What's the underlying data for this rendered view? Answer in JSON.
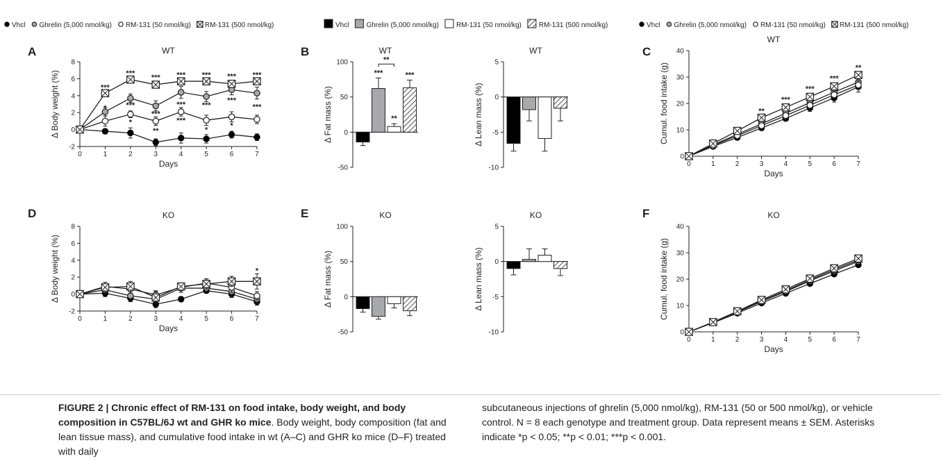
{
  "legends": {
    "line_entries": [
      {
        "marker": "filled-circle",
        "label": "Vhcl"
      },
      {
        "marker": "gray-circle",
        "label": "Ghrelin (5,000 nmol/kg)"
      },
      {
        "marker": "open-circle",
        "label": "RM-131 (50 nmol/kg)"
      },
      {
        "marker": "crossed-square",
        "label": "RM-131 (500 nmol/kg)"
      }
    ],
    "bar_entries": [
      {
        "fill": "black",
        "label": "Vhcl"
      },
      {
        "fill": "gray",
        "label": "Ghrelin (5,000 nmol/kg)"
      },
      {
        "fill": "white",
        "label": "RM-131 (50 nmol/kg)"
      },
      {
        "fill": "hatched",
        "label": "RM-131 (500 nmol/kg)"
      }
    ]
  },
  "colors": {
    "vhcl": "#000000",
    "ghrelin": "#a7a9ac",
    "rm50": "#ffffff",
    "rm500": "#ffffff",
    "ink": "#231f20"
  },
  "chart_data": [
    {
      "panel": "A",
      "type": "line",
      "title": "WT",
      "xlabel": "Days",
      "ylabel": "Δ Body weight (%)",
      "x": [
        0,
        1,
        2,
        3,
        4,
        5,
        6,
        7
      ],
      "xlim": [
        0,
        7
      ],
      "ylim": [
        -2,
        8
      ],
      "yticks": [
        -2,
        0,
        2,
        4,
        6,
        8
      ],
      "series": [
        {
          "name": "Vhcl",
          "marker": "filled-circle",
          "values": [
            0,
            -0.2,
            -0.4,
            -1.5,
            -1.0,
            -1.1,
            -0.6,
            -0.9
          ],
          "err": [
            0.2,
            0.3,
            0.6,
            0.4,
            0.6,
            0.5,
            0.4,
            0.4
          ]
        },
        {
          "name": "Ghrelin (5,000 nmol/kg)",
          "marker": "gray-circle",
          "values": [
            0,
            2.1,
            3.7,
            2.8,
            4.4,
            3.9,
            4.7,
            4.3
          ],
          "err": [
            0.2,
            0.5,
            0.5,
            0.6,
            0.7,
            0.6,
            0.6,
            0.7
          ]
        },
        {
          "name": "RM-131 (50 nmol/kg)",
          "marker": "open-circle",
          "values": [
            0,
            1.0,
            1.8,
            1.0,
            2.1,
            1.1,
            1.5,
            1.2
          ],
          "err": [
            0.2,
            0.6,
            0.4,
            0.5,
            0.5,
            0.6,
            0.6,
            0.5
          ]
        },
        {
          "name": "RM-131 (500 nmol/kg)",
          "marker": "crossed-square",
          "values": [
            0,
            4.3,
            5.9,
            5.3,
            5.7,
            5.7,
            5.4,
            5.7
          ],
          "err": [
            0.2,
            0.3,
            0.3,
            0.3,
            0.3,
            0.3,
            0.4,
            0.4
          ]
        }
      ],
      "annotations": [
        {
          "x": 1,
          "y": 5.0,
          "text": "***"
        },
        {
          "x": 2,
          "y": 6.7,
          "text": "***"
        },
        {
          "x": 3,
          "y": 6.2,
          "text": "***"
        },
        {
          "x": 4,
          "y": 6.5,
          "text": "***"
        },
        {
          "x": 5,
          "y": 6.5,
          "text": "***"
        },
        {
          "x": 6,
          "y": 6.3,
          "text": "***"
        },
        {
          "x": 7,
          "y": 6.5,
          "text": "***"
        },
        {
          "x": 1,
          "y": 2.6,
          "text": "*"
        },
        {
          "x": 2,
          "y": 2.9,
          "text": "***"
        },
        {
          "x": 3,
          "y": 1.9,
          "text": "***"
        },
        {
          "x": 4,
          "y": 3.0,
          "text": "***"
        },
        {
          "x": 5,
          "y": 2.9,
          "text": "***"
        },
        {
          "x": 6,
          "y": 3.5,
          "text": "***"
        },
        {
          "x": 7,
          "y": 2.7,
          "text": "***"
        },
        {
          "x": 2,
          "y": 0.9,
          "text": "*"
        },
        {
          "x": 3,
          "y": -0.1,
          "text": "**"
        },
        {
          "x": 4,
          "y": 1.1,
          "text": "***"
        },
        {
          "x": 5,
          "y": 0.0,
          "text": "*"
        },
        {
          "x": 6,
          "y": 0.5,
          "text": "*"
        }
      ]
    },
    {
      "panel": "B",
      "type": "bar",
      "title": "WT",
      "ylabel": "Δ Fat mass (%)",
      "categories": [
        "Vhcl",
        "Ghrelin (5,000 nmol/kg)",
        "RM-131 (50 nmol/kg)",
        "RM-131 (500 nmol/kg)"
      ],
      "values": [
        -14,
        62,
        8,
        63
      ],
      "err": [
        5,
        15,
        4,
        11
      ],
      "ylim": [
        -50,
        100
      ],
      "yticks": [
        -50,
        0,
        50,
        100
      ],
      "annotations": [
        {
          "bar": 1,
          "text": "***"
        },
        {
          "bar": 2,
          "text": "**"
        },
        {
          "bar": 3,
          "text": "***"
        }
      ],
      "bracket": {
        "from": 1,
        "to": 2,
        "text": "**"
      }
    },
    {
      "panel": "B2",
      "type": "bar",
      "title": "WT",
      "ylabel": "Δ Lean mass (%)",
      "categories": [
        "Vhcl",
        "Ghrelin (5,000 nmol/kg)",
        "RM-131 (50 nmol/kg)",
        "RM-131 (500 nmol/kg)"
      ],
      "values": [
        -6.6,
        -1.8,
        -5.9,
        -1.6
      ],
      "err": [
        1.1,
        1.6,
        1.8,
        1.8
      ],
      "ylim": [
        -10,
        5
      ],
      "yticks": [
        -10,
        -5,
        0,
        5
      ]
    },
    {
      "panel": "C",
      "type": "line",
      "title": "WT",
      "xlabel": "Days",
      "ylabel": "Cumul. food intake (g)",
      "x": [
        0,
        1,
        2,
        3,
        4,
        5,
        6,
        7
      ],
      "xlim": [
        0,
        7
      ],
      "ylim": [
        0,
        40
      ],
      "yticks": [
        0,
        10,
        20,
        30,
        40
      ],
      "series": [
        {
          "name": "Vhcl",
          "marker": "filled-circle",
          "values": [
            0,
            3.7,
            7.1,
            10.7,
            14.3,
            18.3,
            22.1,
            26.3
          ],
          "err": [
            0.2,
            0.4,
            0.6,
            0.8,
            1.0,
            1.3,
            1.6,
            2.0
          ]
        },
        {
          "name": "Ghrelin (5,000 nmol/kg)",
          "marker": "gray-circle",
          "values": [
            0,
            4.3,
            8.3,
            12.3,
            16.3,
            20.3,
            24.3,
            28.1
          ],
          "err": [
            0.2,
            0.4,
            0.6,
            0.8,
            1.0,
            1.2,
            1.4,
            1.6
          ]
        },
        {
          "name": "RM-131 (50 nmol/kg)",
          "marker": "open-circle",
          "values": [
            0,
            4.0,
            7.8,
            11.6,
            15.4,
            19.3,
            23.3,
            27.0
          ],
          "err": [
            0.2,
            0.4,
            0.6,
            0.8,
            1.0,
            1.2,
            1.4,
            1.6
          ]
        },
        {
          "name": "RM-131 (500 nmol/kg)",
          "marker": "crossed-square",
          "values": [
            0,
            4.8,
            9.6,
            14.6,
            18.5,
            22.5,
            26.5,
            30.8
          ],
          "err": [
            0.2,
            0.3,
            0.5,
            0.6,
            0.8,
            0.9,
            1.0,
            1.1
          ]
        }
      ],
      "annotations": [
        {
          "x": 3,
          "y": 17.3,
          "text": "**"
        },
        {
          "x": 4,
          "y": 21.6,
          "text": "***"
        },
        {
          "x": 5,
          "y": 25.6,
          "text": "***"
        },
        {
          "x": 6,
          "y": 29.6,
          "text": "***"
        },
        {
          "x": 7,
          "y": 33.7,
          "text": "**"
        }
      ]
    },
    {
      "panel": "D",
      "type": "line",
      "title": "KO",
      "xlabel": "Days",
      "ylabel": "Δ Body weight (%)",
      "x": [
        0,
        1,
        2,
        3,
        4,
        5,
        6,
        7
      ],
      "xlim": [
        0,
        7
      ],
      "ylim": [
        -2,
        8
      ],
      "yticks": [
        -2,
        0,
        2,
        4,
        6,
        8
      ],
      "series": [
        {
          "name": "Vhcl",
          "marker": "filled-circle",
          "values": [
            0,
            0.1,
            -0.5,
            -1.2,
            -0.6,
            0.4,
            0.0,
            -0.9
          ],
          "err": [
            0.2,
            0.4,
            0.4,
            0.4,
            0.3,
            0.3,
            0.4,
            0.4
          ]
        },
        {
          "name": "Ghrelin (5,000 nmol/kg)",
          "marker": "gray-circle",
          "values": [
            0,
            0.5,
            -0.2,
            -0.6,
            0.7,
            0.7,
            0.3,
            -0.6
          ],
          "err": [
            0.2,
            0.5,
            0.5,
            0.5,
            0.5,
            0.5,
            0.6,
            0.5
          ]
        },
        {
          "name": "RM-131 (50 nmol/kg)",
          "marker": "open-circle",
          "values": [
            0,
            0.9,
            0.6,
            -0.1,
            0.8,
            1.3,
            0.8,
            -0.2
          ],
          "err": [
            0.2,
            0.5,
            0.5,
            0.5,
            0.4,
            0.5,
            0.6,
            0.5
          ]
        },
        {
          "name": "RM-131 (500 nmol/kg)",
          "marker": "crossed-square",
          "values": [
            0,
            0.8,
            0.9,
            -0.4,
            0.9,
            1.2,
            1.5,
            1.5
          ],
          "err": [
            0.2,
            0.6,
            0.6,
            0.7,
            0.3,
            0.6,
            0.6,
            0.9
          ]
        }
      ],
      "annotations": [
        {
          "x": 7,
          "y": 2.8,
          "text": "*"
        }
      ]
    },
    {
      "panel": "E",
      "type": "bar",
      "title": "KO",
      "ylabel": "Δ Fat mass (%)",
      "categories": [
        "Vhcl",
        "Ghrelin (5,000 nmol/kg)",
        "RM-131 (50 nmol/kg)",
        "RM-131 (500 nmol/kg)"
      ],
      "values": [
        -17,
        -28,
        -10,
        -20
      ],
      "err": [
        5,
        4,
        6,
        7
      ],
      "ylim": [
        -50,
        100
      ],
      "yticks": [
        -50,
        0,
        50,
        100
      ]
    },
    {
      "panel": "E2",
      "type": "bar",
      "title": "KO",
      "ylabel": "Δ Lean mass (%)",
      "categories": [
        "Vhcl",
        "Ghrelin (5,000 nmol/kg)",
        "RM-131 (50 nmol/kg)",
        "RM-131 (500 nmol/kg)"
      ],
      "values": [
        -1.0,
        0.3,
        0.9,
        -1.0
      ],
      "err": [
        0.9,
        1.5,
        0.9,
        1.0
      ],
      "ylim": [
        -10,
        5
      ],
      "yticks": [
        -10,
        -5,
        0,
        5
      ]
    },
    {
      "panel": "F",
      "type": "line",
      "title": "KO",
      "xlabel": "Days",
      "ylabel": "Cumul. food intake (g)",
      "x": [
        0,
        1,
        2,
        3,
        4,
        5,
        6,
        7
      ],
      "xlim": [
        0,
        7
      ],
      "ylim": [
        0,
        40
      ],
      "yticks": [
        0,
        10,
        20,
        30,
        40
      ],
      "series": [
        {
          "name": "Vhcl",
          "marker": "filled-circle",
          "values": [
            0,
            3.4,
            7.1,
            10.9,
            14.6,
            18.3,
            21.9,
            25.4
          ],
          "err": [
            0.1,
            0.2,
            0.3,
            0.4,
            0.5,
            0.6,
            0.7,
            0.8
          ]
        },
        {
          "name": "Ghrelin (5,000 nmol/kg)",
          "marker": "gray-circle",
          "values": [
            0,
            3.6,
            7.5,
            11.5,
            15.3,
            19.3,
            23.1,
            26.7
          ],
          "err": [
            0.1,
            0.2,
            0.3,
            0.4,
            0.5,
            0.6,
            0.7,
            0.8
          ]
        },
        {
          "name": "RM-131 (50 nmol/kg)",
          "marker": "open-circle",
          "values": [
            0,
            3.6,
            7.6,
            11.7,
            15.6,
            19.7,
            23.6,
            27.2
          ],
          "err": [
            0.1,
            0.2,
            0.3,
            0.4,
            0.5,
            0.6,
            0.7,
            0.8
          ]
        },
        {
          "name": "RM-131 (500 nmol/kg)",
          "marker": "crossed-square",
          "values": [
            0,
            3.7,
            7.8,
            12.1,
            16.1,
            20.2,
            24.1,
            27.8
          ],
          "err": [
            0.1,
            0.2,
            0.3,
            0.4,
            0.5,
            0.6,
            0.7,
            0.8
          ]
        }
      ],
      "annotations": []
    }
  ],
  "caption": {
    "title": "FIGURE 2 | Chronic effect of RM-131 on food intake, body weight, and body composition in C57BL/6J wt and GHR ko mice",
    "text_left": ". Body weight, body composition (fat and lean tissue mass), and cumulative food intake in wt (A–C) and GHR ko mice (D–F) treated with daily",
    "text_right": "subcutaneous injections of ghrelin (5,000 nmol/kg), RM-131 (50 or 500 nmol/kg), or vehicle control. N = 8 each genotype and treatment group. Data represent means ± SEM. Asterisks indicate *p < 0.05; **p < 0.01; ***p < 0.001."
  }
}
